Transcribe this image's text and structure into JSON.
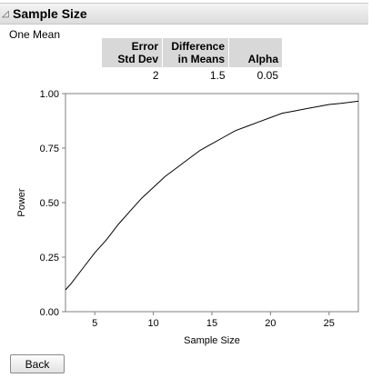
{
  "section": {
    "title": "Sample Size",
    "subtitle": "One Mean"
  },
  "params": {
    "headers": [
      [
        "Error",
        "Std Dev"
      ],
      [
        "Difference",
        "in Means"
      ],
      [
        "",
        "Alpha"
      ]
    ],
    "values": [
      "2",
      "1.5",
      "0.05"
    ]
  },
  "chart_data": {
    "type": "line",
    "xlabel": "Sample Size",
    "ylabel": "Power",
    "xlim": [
      2.5,
      27.5
    ],
    "ylim": [
      0,
      1
    ],
    "xticks": [
      "5",
      "10",
      "15",
      "20",
      "25"
    ],
    "yticks": [
      "0.00",
      "0.25",
      "0.50",
      "0.75",
      "1.00"
    ],
    "series": [
      {
        "x": [
          2.5,
          3,
          4,
          5,
          6,
          7,
          8,
          9,
          10,
          11,
          12,
          13,
          14,
          15,
          16,
          17,
          18,
          19,
          20,
          21,
          22,
          23,
          24,
          25,
          26,
          27,
          27.5
        ],
        "values": [
          0.1,
          0.13,
          0.2,
          0.27,
          0.33,
          0.4,
          0.46,
          0.52,
          0.57,
          0.62,
          0.66,
          0.7,
          0.74,
          0.77,
          0.8,
          0.83,
          0.85,
          0.87,
          0.89,
          0.91,
          0.92,
          0.93,
          0.94,
          0.95,
          0.955,
          0.962,
          0.965
        ]
      }
    ]
  },
  "buttons": {
    "back": "Back"
  }
}
